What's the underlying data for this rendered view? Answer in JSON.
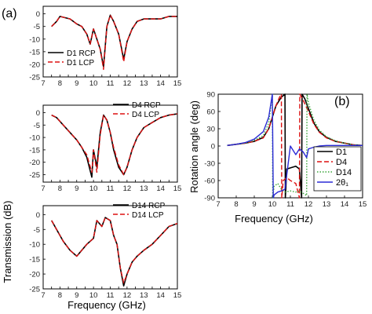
{
  "figure": {
    "panel_a_label": "(a)",
    "panel_b_label": "(b)",
    "ylabel_a": "Transmission (dB)",
    "xlabel_a": "Frequency (GHz)",
    "ylabel_b": "Rotation angle (deg)",
    "xlabel_b": "Frequency (GHz)"
  },
  "chart_data": [
    {
      "type": "line",
      "id": "a1",
      "xlim": [
        7,
        15
      ],
      "ylim": [
        -25,
        3
      ],
      "xticks": [
        7,
        7.5,
        8,
        8.5,
        9,
        9.5,
        10,
        10.5,
        11,
        11.5,
        12,
        12.5,
        13,
        13.5,
        14,
        14.5,
        15
      ],
      "yticks": [
        0,
        -5,
        -10,
        -15,
        -20,
        -25
      ],
      "legend_position": "bottom-left",
      "series": [
        {
          "name": "D1 RCP",
          "color": "#000000",
          "dash": "solid",
          "x": [
            7.5,
            7.8,
            8.0,
            8.3,
            8.6,
            9.0,
            9.3,
            9.6,
            9.8,
            10.0,
            10.2,
            10.4,
            10.6,
            10.8,
            11.0,
            11.2,
            11.5,
            11.8,
            12.0,
            12.3,
            12.6,
            13.0,
            13.5,
            14.0,
            14.5,
            15.0
          ],
          "y": [
            -5,
            -3,
            -1,
            -1.5,
            -2,
            -4,
            -5,
            -8,
            -12,
            -6,
            -10,
            -14,
            -21,
            -5,
            -0.5,
            -3,
            -8,
            -18,
            -11,
            -6,
            -3,
            -2,
            -2,
            -2,
            -1,
            -1
          ]
        },
        {
          "name": "D1 LCP",
          "color": "#dd1111",
          "dash": "dashed",
          "x": [
            7.5,
            7.8,
            8.0,
            8.3,
            8.6,
            9.0,
            9.3,
            9.6,
            9.8,
            10.0,
            10.2,
            10.4,
            10.6,
            10.8,
            11.0,
            11.2,
            11.5,
            11.8,
            12.0,
            12.3,
            12.6,
            13.0,
            13.5,
            14.0,
            14.5,
            15.0
          ],
          "y": [
            -5,
            -3,
            -1,
            -1.5,
            -2,
            -4,
            -5,
            -8,
            -12,
            -6,
            -10,
            -14,
            -22,
            -5,
            -0.5,
            -3,
            -8,
            -19,
            -11,
            -6,
            -3,
            -2,
            -2,
            -2,
            -1,
            -1
          ]
        }
      ]
    },
    {
      "type": "line",
      "id": "a2",
      "xlim": [
        7,
        15
      ],
      "ylim": [
        -28,
        3
      ],
      "xticks": [
        7,
        7.5,
        8,
        8.5,
        9,
        9.5,
        10,
        10.5,
        11,
        11.5,
        12,
        12.5,
        13,
        13.5,
        14,
        14.5,
        15
      ],
      "yticks": [
        0,
        -5,
        -10,
        -15,
        -20,
        -25
      ],
      "legend_position": "top-right",
      "series": [
        {
          "name": "D4 RCP",
          "color": "#000000",
          "dash": "solid",
          "x": [
            7.5,
            7.8,
            8.2,
            8.6,
            9.0,
            9.3,
            9.6,
            9.9,
            10.0,
            10.2,
            10.4,
            10.6,
            10.8,
            11.0,
            11.2,
            11.5,
            11.8,
            12.0,
            12.3,
            12.6,
            13.0,
            13.5,
            14.0,
            14.5,
            15.0
          ],
          "y": [
            -1,
            -2,
            -5,
            -8,
            -11,
            -14,
            -18,
            -26,
            -15,
            -22,
            -8,
            -1,
            -3,
            -8,
            -15,
            -22,
            -25,
            -22,
            -15,
            -10,
            -6,
            -4,
            -2,
            -1,
            -0.5
          ]
        },
        {
          "name": "D4 LCP",
          "color": "#dd1111",
          "dash": "dashed",
          "x": [
            7.5,
            7.8,
            8.2,
            8.6,
            9.0,
            9.3,
            9.6,
            9.9,
            10.0,
            10.2,
            10.4,
            10.6,
            10.8,
            11.0,
            11.2,
            11.5,
            11.8,
            12.0,
            12.3,
            12.6,
            13.0,
            13.5,
            14.0,
            14.5,
            15.0
          ],
          "y": [
            -1,
            -2,
            -5,
            -8,
            -11,
            -14,
            -17,
            -24,
            -15,
            -24,
            -9,
            -1,
            -3,
            -8,
            -14,
            -21,
            -25,
            -22,
            -15,
            -10,
            -6,
            -4,
            -2,
            -1,
            -0.5
          ]
        }
      ]
    },
    {
      "type": "line",
      "id": "a3",
      "xlim": [
        7,
        15
      ],
      "ylim": [
        -25,
        3
      ],
      "xticks": [
        7,
        7.5,
        8,
        8.5,
        9,
        9.5,
        10,
        10.5,
        11,
        11.5,
        12,
        12.5,
        13,
        13.5,
        14,
        14.5,
        15
      ],
      "yticks": [
        0,
        -5,
        -10,
        -15,
        -20,
        -25
      ],
      "legend_position": "top-right",
      "series": [
        {
          "name": "D14 RCP",
          "color": "#000000",
          "dash": "solid",
          "x": [
            7.5,
            7.8,
            8.2,
            8.6,
            9.0,
            9.3,
            9.6,
            10.0,
            10.2,
            10.5,
            10.7,
            11.0,
            11.2,
            11.4,
            11.6,
            11.8,
            12.0,
            12.3,
            12.6,
            13.0,
            13.5,
            14.0,
            14.5,
            15.0
          ],
          "y": [
            -2,
            -5,
            -9,
            -12,
            -14,
            -12,
            -10,
            -8,
            -2,
            -4,
            -1,
            -2,
            -7,
            -10,
            -18,
            -24,
            -20,
            -16,
            -14,
            -12,
            -10,
            -7,
            -4,
            -3
          ]
        },
        {
          "name": "D14 LCP",
          "color": "#dd1111",
          "dash": "dashed",
          "x": [
            7.5,
            7.8,
            8.2,
            8.6,
            9.0,
            9.3,
            9.6,
            10.0,
            10.2,
            10.5,
            10.7,
            11.0,
            11.2,
            11.4,
            11.6,
            11.8,
            12.0,
            12.3,
            12.6,
            13.0,
            13.5,
            14.0,
            14.5,
            15.0
          ],
          "y": [
            -2,
            -5,
            -9,
            -12,
            -14,
            -12,
            -10,
            -8,
            -2,
            -4,
            -1,
            -2,
            -7,
            -10,
            -18,
            -23,
            -20,
            -16,
            -14,
            -12,
            -10,
            -7,
            -4,
            -3
          ]
        }
      ]
    },
    {
      "type": "line",
      "id": "b",
      "xlim": [
        7,
        15
      ],
      "ylim": [
        -90,
        90
      ],
      "xticks": [
        7,
        8,
        9,
        10,
        11,
        12,
        13,
        14,
        15
      ],
      "yticks": [
        90,
        60,
        30,
        0,
        -30,
        -60,
        -90
      ],
      "legend_position": "bottom-right",
      "series": [
        {
          "name": "D1",
          "color": "#000000",
          "dash": "solid",
          "x": [
            7.5,
            8,
            8.5,
            9,
            9.5,
            9.8,
            10,
            10.2,
            10.5,
            10.7,
            10.72,
            10.8,
            11,
            11.3,
            11.5,
            11.62,
            11.65,
            11.8,
            12,
            12.3,
            12.6,
            13,
            13.5,
            14,
            14.5,
            15
          ],
          "y": [
            1,
            3,
            5,
            8,
            15,
            30,
            50,
            70,
            85,
            90,
            -90,
            -40,
            -38,
            -35,
            -40,
            -90,
            90,
            82,
            65,
            40,
            25,
            15,
            8,
            5,
            2,
            1
          ]
        },
        {
          "name": "D4",
          "color": "#dd1111",
          "dash": "dashed",
          "x": [
            7.5,
            8,
            8.5,
            9,
            9.5,
            9.8,
            10,
            10.2,
            10.4,
            10.5,
            10.52,
            10.6,
            10.8,
            11,
            11.3,
            11.5,
            11.52,
            11.7,
            12,
            12.3,
            12.6,
            13,
            13.5,
            14,
            14.5,
            15
          ],
          "y": [
            1,
            3,
            5,
            8,
            14,
            30,
            50,
            70,
            85,
            90,
            -90,
            -60,
            -55,
            -60,
            -65,
            -90,
            90,
            80,
            60,
            38,
            24,
            14,
            8,
            5,
            2,
            1
          ]
        },
        {
          "name": "D14",
          "color": "#3aa53a",
          "dash": "dotted",
          "x": [
            7.5,
            8,
            8.5,
            9,
            9.5,
            9.8,
            10.0,
            10.02,
            10.1,
            10.3,
            10.5,
            10.7,
            11,
            11.3,
            11.5,
            11.7,
            11.9,
            11.92,
            12,
            12.3,
            12.6,
            13,
            13.5,
            14,
            14.5,
            15
          ],
          "y": [
            1,
            3,
            5,
            10,
            18,
            40,
            90,
            -90,
            -70,
            -65,
            -75,
            -80,
            -78,
            -80,
            -78,
            -82,
            -86,
            90,
            75,
            45,
            28,
            16,
            9,
            5,
            2,
            1
          ]
        },
        {
          "name": "2θ₁",
          "color": "#2b2bd6",
          "dash": "solid",
          "x": [
            7.5,
            8,
            8.5,
            9,
            9.5,
            9.8,
            10.0,
            10.05,
            10.1,
            10.3,
            10.5,
            10.7,
            11,
            11.3,
            11.5,
            11.7,
            11.9,
            12.0,
            12.3,
            12.6,
            13,
            13.5,
            14,
            14.5,
            15
          ],
          "y": [
            1,
            3,
            6,
            12,
            25,
            50,
            90,
            -90,
            -85,
            -80,
            -78,
            -75,
            0,
            -15,
            -5,
            -10,
            -20,
            -5,
            -2,
            0,
            1,
            1,
            1,
            1,
            1
          ]
        }
      ]
    }
  ]
}
